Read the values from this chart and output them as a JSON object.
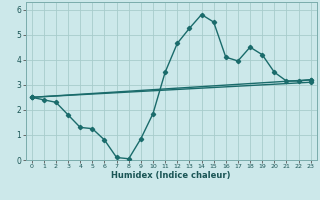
{
  "xlabel": "Humidex (Indice chaleur)",
  "bg_color": "#cce8ea",
  "grid_color": "#a8cccc",
  "line_color": "#1a6b6b",
  "xlim": [
    -0.5,
    23.5
  ],
  "ylim": [
    0,
    6.3
  ],
  "xticks": [
    0,
    1,
    2,
    3,
    4,
    5,
    6,
    7,
    8,
    9,
    10,
    11,
    12,
    13,
    14,
    15,
    16,
    17,
    18,
    19,
    20,
    21,
    22,
    23
  ],
  "yticks": [
    0,
    1,
    2,
    3,
    4,
    5,
    6
  ],
  "line1_x": [
    0,
    1,
    2,
    3,
    4,
    5,
    6,
    7,
    8,
    9,
    10,
    11,
    12,
    13,
    14,
    15,
    16,
    17,
    18,
    19,
    20,
    21,
    22,
    23
  ],
  "line1_y": [
    2.5,
    2.4,
    2.3,
    1.8,
    1.3,
    1.25,
    0.8,
    0.1,
    0.05,
    0.85,
    1.85,
    3.5,
    4.65,
    5.25,
    5.8,
    5.5,
    4.1,
    3.95,
    4.5,
    4.2,
    3.5,
    3.15,
    3.15,
    3.2
  ],
  "line2_x": [
    0,
    23
  ],
  "line2_y": [
    2.5,
    3.2
  ],
  "line3_x": [
    0,
    23
  ],
  "line3_y": [
    2.5,
    3.1
  ],
  "marker": "D",
  "markersize": 2.2,
  "linewidth": 1.0
}
